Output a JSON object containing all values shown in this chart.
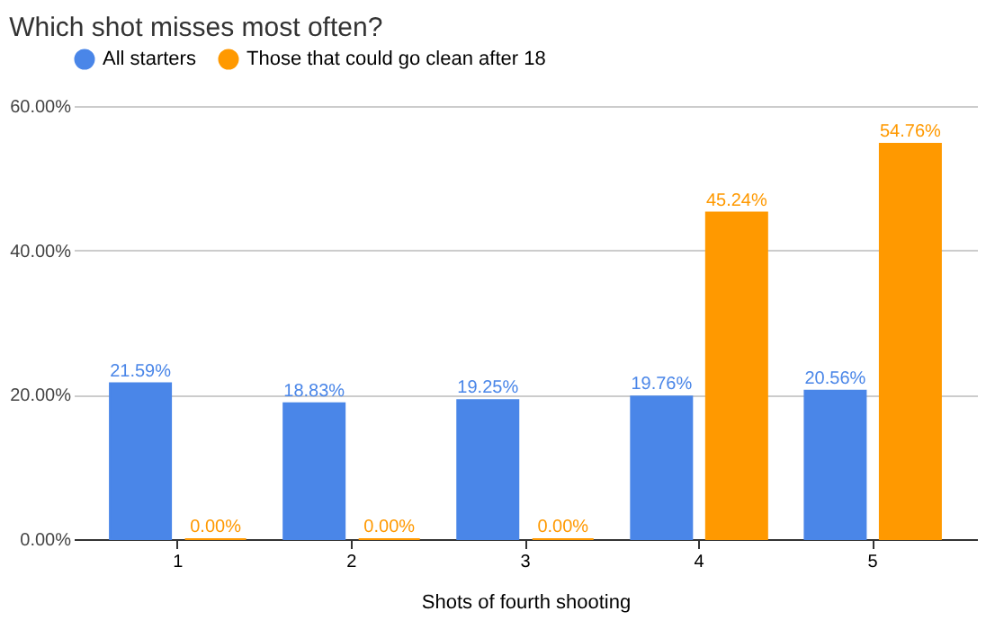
{
  "chart_data": {
    "type": "bar",
    "title": "Which shot misses most often?",
    "xlabel": "Shots of fourth shooting",
    "categories": [
      "1",
      "2",
      "3",
      "4",
      "5"
    ],
    "series": [
      {
        "name": "All starters",
        "color": "#4a86e8",
        "values": [
          21.59,
          18.83,
          19.25,
          19.76,
          20.56
        ],
        "value_labels": [
          "21.59%",
          "18.83%",
          "19.25%",
          "19.76%",
          "20.56%"
        ]
      },
      {
        "name": "Those that could go clean after 18",
        "color": "#ff9900",
        "values": [
          0,
          0,
          0,
          45.24,
          54.76
        ],
        "value_labels": [
          "0.00%",
          "0.00%",
          "0.00%",
          "45.24%",
          "54.76%"
        ]
      }
    ],
    "ylim": [
      0,
      60
    ],
    "yticks": [
      {
        "value": 0,
        "label": "0.00%"
      },
      {
        "value": 20,
        "label": "20.00%"
      },
      {
        "value": 40,
        "label": "40.00%"
      },
      {
        "value": 60,
        "label": "60.00%"
      }
    ],
    "grid": "y",
    "legend": "top"
  }
}
